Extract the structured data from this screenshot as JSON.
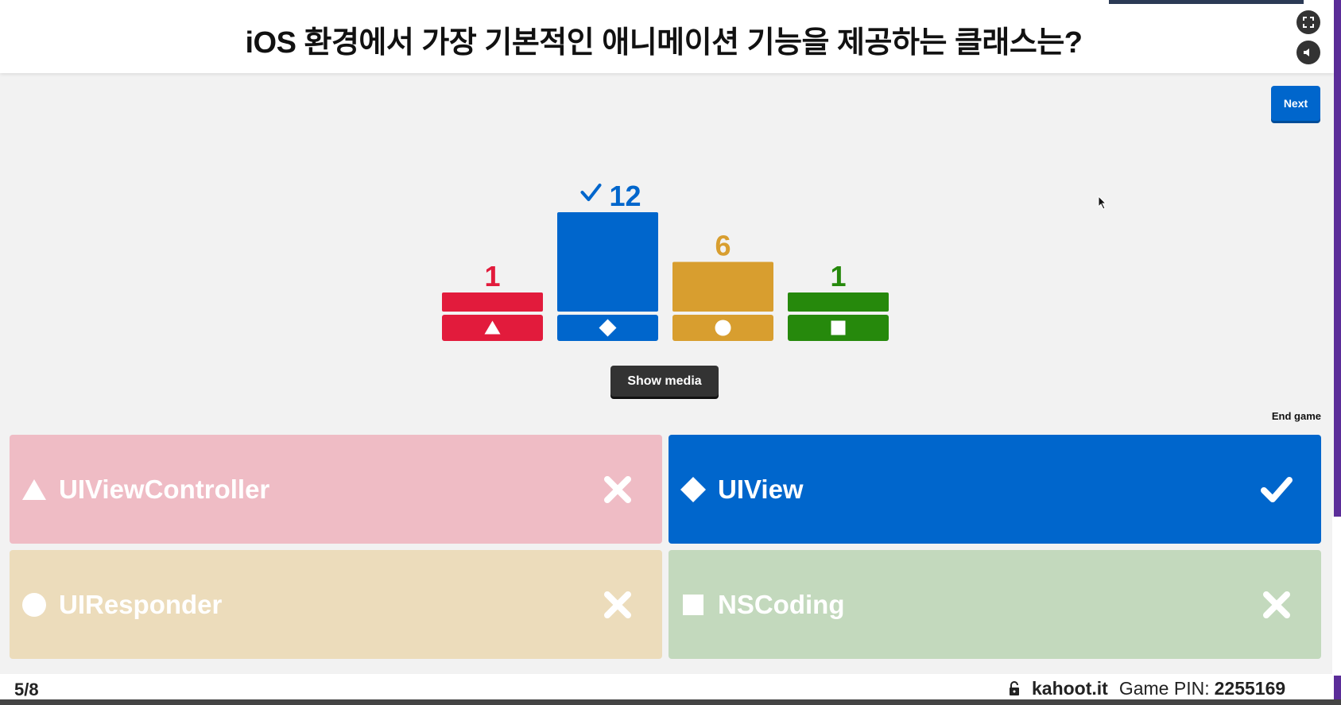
{
  "question": {
    "text": "iOS 환경에서 가장 기본적인 애니메이션 기능을 제공하는 클래스는?"
  },
  "controls": {
    "next_label": "Next",
    "show_media_label": "Show media",
    "end_game_label": "End game",
    "fullscreen_icon": "fullscreen-icon",
    "sound_icon": "sound-icon"
  },
  "chart_data": {
    "type": "bar",
    "categories": [
      "triangle",
      "diamond",
      "circle",
      "square"
    ],
    "values": [
      1,
      12,
      6,
      1
    ],
    "labels": [
      "1",
      "12",
      "6",
      "1"
    ],
    "correct_index": 1,
    "colors": [
      "#e21b3c",
      "#0066cc",
      "#d89e2f",
      "#26890c"
    ],
    "ylim": [
      0,
      12
    ]
  },
  "answers": [
    {
      "shape": "triangle-icon",
      "label": "UIViewController",
      "correct": false,
      "bg": "#efbcc5"
    },
    {
      "shape": "diamond-icon",
      "label": "UIView",
      "correct": true,
      "bg": "#0066cc"
    },
    {
      "shape": "circle-icon",
      "label": "UIResponder",
      "correct": false,
      "bg": "#ecdcbb"
    },
    {
      "shape": "square-icon",
      "label": "NSCoding",
      "correct": false,
      "bg": "#c3d9bd"
    }
  ],
  "footer": {
    "counter": "5/8",
    "domain": "kahoot.it",
    "pin_label": "Game PIN:",
    "pin": "2255169"
  }
}
